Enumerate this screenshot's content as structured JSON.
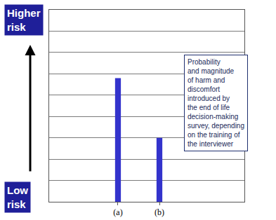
{
  "chart_data": {
    "type": "bar",
    "categories": [
      "(a)",
      "(b)"
    ],
    "values": [
      5.8,
      3.0
    ],
    "color": "#3333cc",
    "ylim": [
      0,
      9
    ],
    "yticks": [
      0,
      1,
      2,
      3,
      4,
      5,
      6,
      7,
      8,
      9
    ],
    "grid": true,
    "tick_labels": "x",
    "y_top_label": "Higher\nrisk",
    "y_bottom_label": "Low\nrisk",
    "annotation": "Probability\nand magnitude\nof harm and\ndiscomfort\nintroduced by\nthe end of life\ndecision-making\nsurvey, depending\non the training of\nthe interviewer"
  }
}
